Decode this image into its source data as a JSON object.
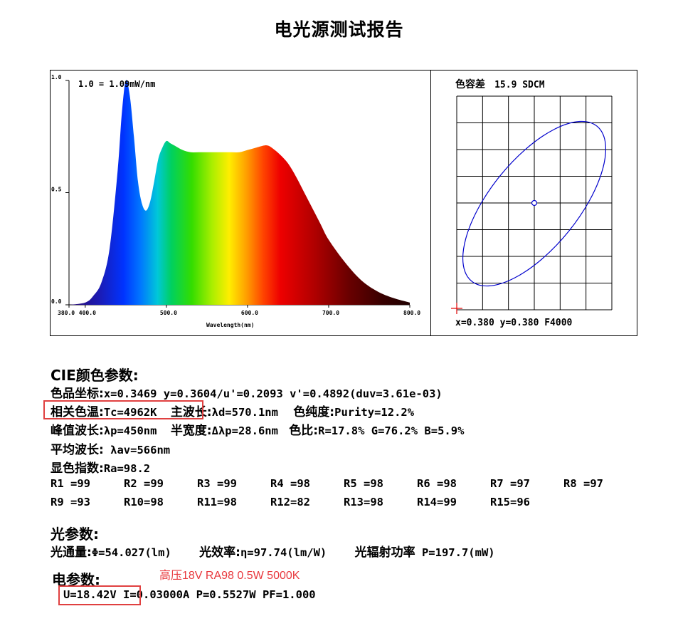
{
  "title": "电光源测试报告",
  "chart_data": [
    {
      "type": "area",
      "annotation": "1.0 = 1.09mW/nm",
      "xlabel": "Wavelength(nm)",
      "ylabel": "",
      "xlim": [
        380,
        800
      ],
      "ylim": [
        0,
        1.0
      ],
      "x_ticks": [
        "380.0",
        "400.0",
        "500.0",
        "600.0",
        "700.0",
        "800.0"
      ],
      "y_ticks": [
        "0.0",
        "0.5",
        "1.0"
      ],
      "fill": "visible-spectrum gradient",
      "x": [
        380,
        400,
        410,
        420,
        430,
        440,
        445,
        450,
        455,
        460,
        465,
        470,
        475,
        480,
        485,
        490,
        495,
        500,
        505,
        510,
        520,
        530,
        540,
        550,
        560,
        570,
        580,
        590,
        600,
        610,
        620,
        625,
        630,
        640,
        650,
        660,
        670,
        680,
        690,
        700,
        720,
        740,
        760,
        780,
        800
      ],
      "y": [
        0.0,
        0.01,
        0.04,
        0.1,
        0.25,
        0.6,
        0.85,
        1.0,
        0.93,
        0.75,
        0.55,
        0.45,
        0.42,
        0.46,
        0.55,
        0.65,
        0.7,
        0.73,
        0.72,
        0.71,
        0.69,
        0.68,
        0.68,
        0.68,
        0.68,
        0.68,
        0.68,
        0.68,
        0.69,
        0.7,
        0.71,
        0.71,
        0.7,
        0.67,
        0.63,
        0.57,
        0.5,
        0.43,
        0.36,
        0.29,
        0.19,
        0.11,
        0.06,
        0.03,
        0.01
      ]
    },
    {
      "type": "scatter",
      "title": "色容差",
      "title_value": "15.9 SDCM",
      "footer": "x=0.380 y=0.380 F4000",
      "grid": true,
      "ellipse_color": "#0000cc"
    }
  ],
  "cie": {
    "header": "CIE颜色参数:",
    "line1": {
      "label": "色品坐标:",
      "value": "x=0.3469 y=0.3604/u'=0.2093 v'=0.4892(duv=3.61e-03)"
    },
    "line2": {
      "cct_label": "相关色温:",
      "cct_value": "Tc=4962K",
      "dom_label": "主波长:",
      "dom_value": "λd=570.1nm",
      "pur_label": "色纯度:",
      "pur_value": "Purity=12.2%"
    },
    "line3": {
      "peak_label": "峰值波长:",
      "peak_value": "λp=450nm",
      "hw_label": "半宽度:",
      "hw_value": "Δλp=28.6nm",
      "ratio_label": "色比:",
      "ratio_value": "R=17.8% G=76.2% B=5.9%"
    },
    "line4": {
      "label": "平均波长:",
      "value": " λav=566nm"
    },
    "line5": {
      "label": "显色指数:",
      "value": "Ra=98.2"
    },
    "r_row1": [
      "R1 =99",
      "R2 =99",
      "R3 =99",
      "R4 =98",
      "R5 =98",
      "R6 =98",
      "R7 =97",
      "R8 =97"
    ],
    "r_row2": [
      "R9 =93",
      "R10=98",
      "R11=98",
      "R12=82",
      "R13=98",
      "R14=99",
      "R15=96"
    ]
  },
  "photo": {
    "header": "光参数:",
    "flux_label": "光通量:",
    "flux_value": "Φ=54.027(lm)",
    "eff_label": "光效率:",
    "eff_value": "η=97.74(lm/W)",
    "rad_label": "光辐射功率",
    "rad_value": " P=197.7(mW)"
  },
  "elec": {
    "header": "电参数:",
    "note": "高压18V RA98 0.5W 5000K",
    "voltage": "U=18.42V",
    "rest": " I=0.03000A P=0.5527W PF=1.000"
  },
  "colors": {
    "highlight_box": "#e04040",
    "note_text": "#e8383d"
  }
}
